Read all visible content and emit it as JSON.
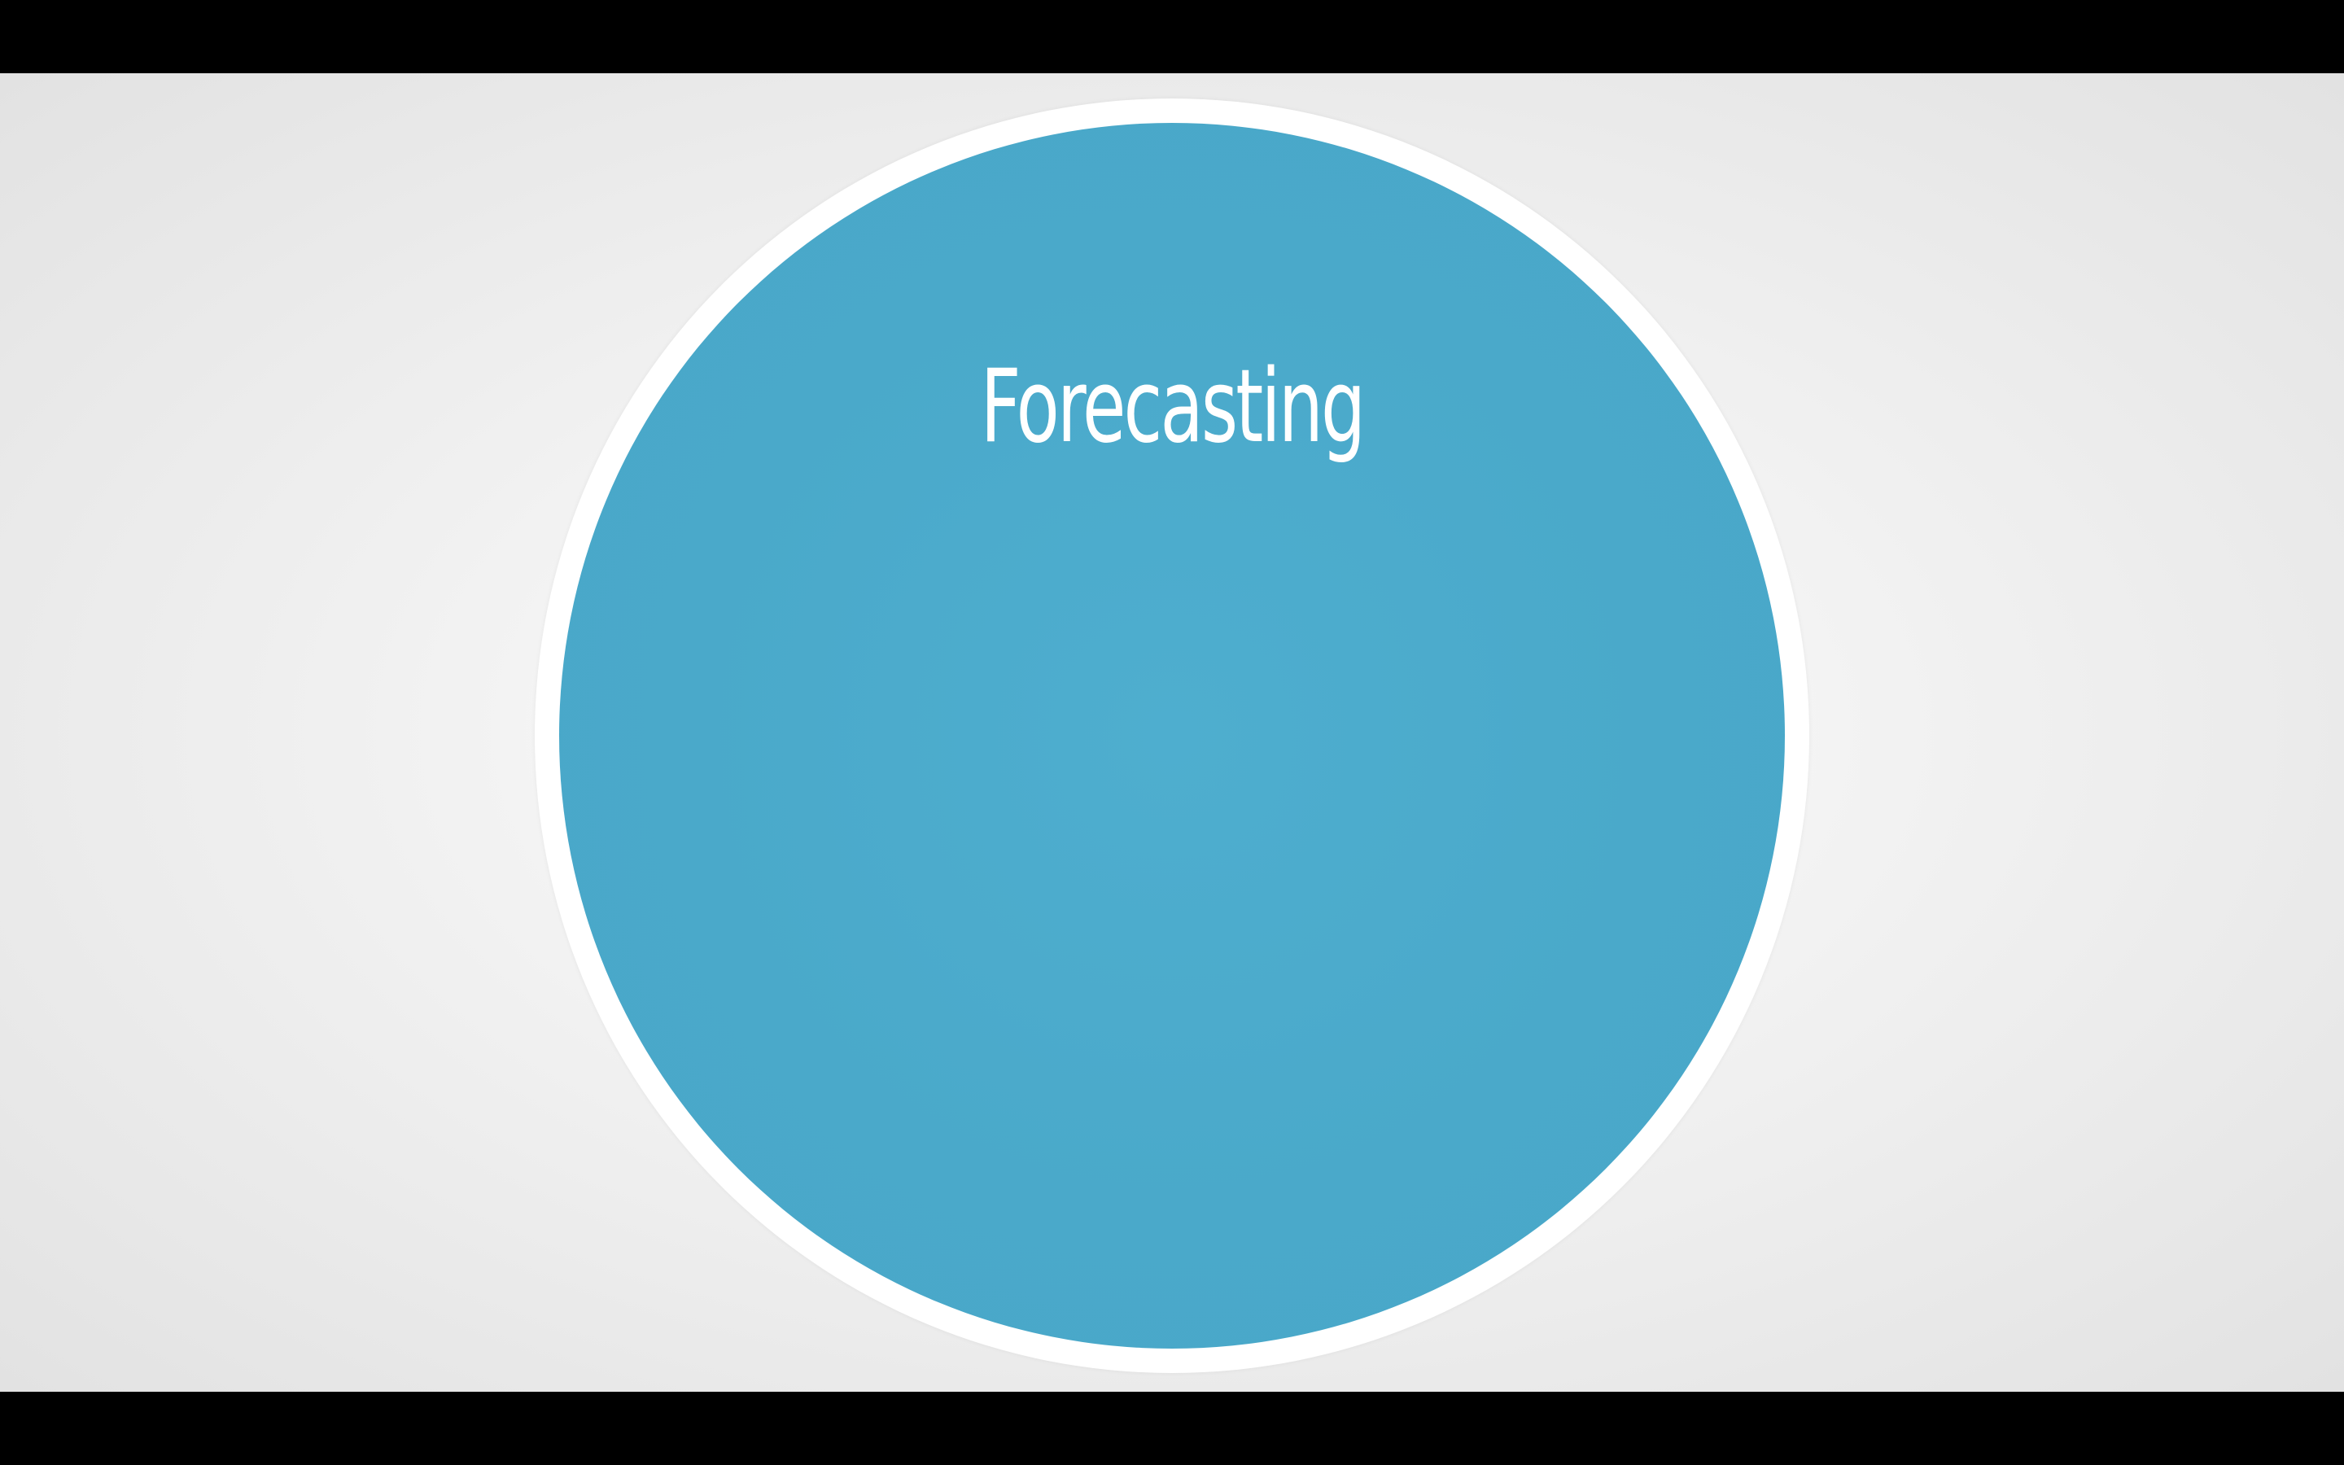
{
  "slide": {
    "title": "Forecasting"
  },
  "colors": {
    "circle_fill": "#4aa9ca",
    "circle_ring": "#ffffff",
    "background": "#eeeeee",
    "letterbox": "#000000",
    "title_text": "#ffffff"
  }
}
